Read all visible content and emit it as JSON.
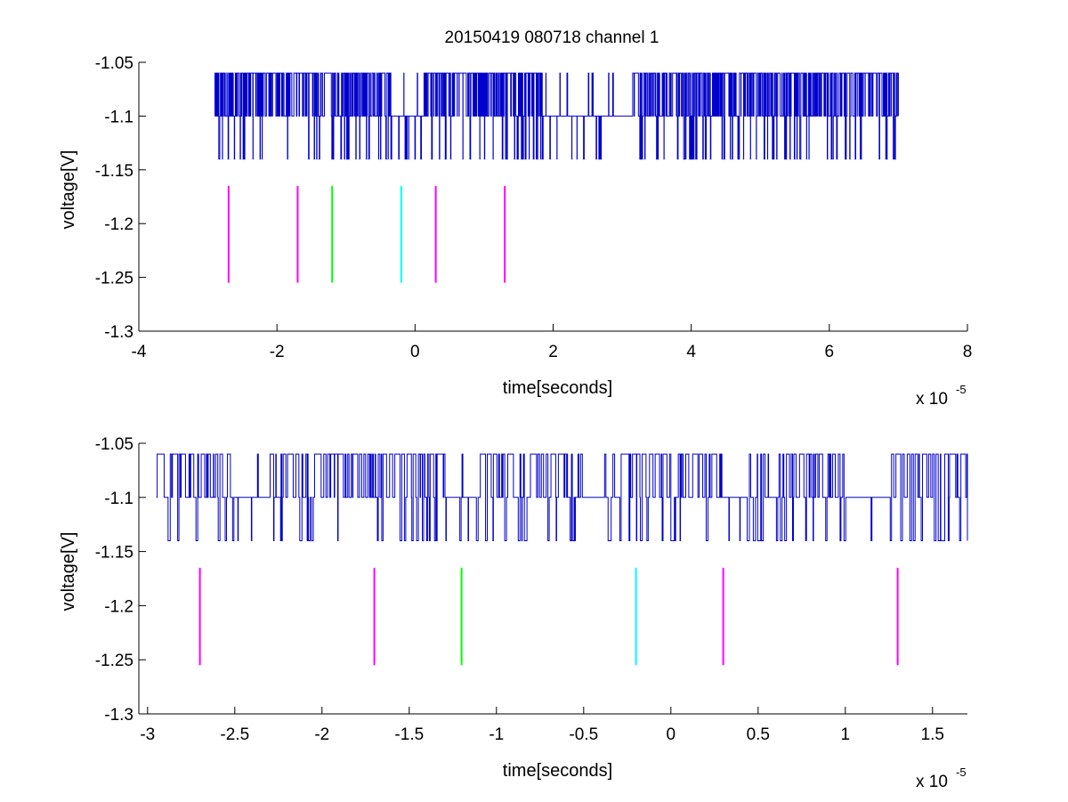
{
  "figure": {
    "title": "20150419 080718 channel 1"
  },
  "chart_data": [
    {
      "type": "line",
      "title": "20150419 080718 channel 1",
      "xlabel": "time[seconds]",
      "ylabel": "voltage[V]",
      "x_multiplier_label": "x 10",
      "x_multiplier_exponent": "-5",
      "xlim": [
        -4e-05,
        8e-05
      ],
      "ylim": [
        -1.3,
        -1.05
      ],
      "x_ticks": [
        -4,
        -2,
        0,
        2,
        4,
        6,
        8
      ],
      "x_tick_labels": [
        "-4",
        "-2",
        "0",
        "2",
        "4",
        "6",
        "8"
      ],
      "y_ticks": [
        -1.3,
        -1.25,
        -1.2,
        -1.15,
        -1.1,
        -1.05
      ],
      "y_tick_labels": [
        "-1.3",
        "-1.25",
        "-1.2",
        "-1.15",
        "-1.1",
        "-1.05"
      ],
      "grid": false,
      "series": [
        {
          "color": "#0000cc",
          "x_range": [
            -2.9e-05,
            7e-05
          ],
          "baseline": -1.1,
          "levels": [
            -1.06,
            -1.1,
            -1.14
          ],
          "note_values": "digitized square-wave trace switching between -1.06, -1.10 and -1.14 V"
        }
      ],
      "markers": [
        {
          "x": -2.7e-05,
          "y": [
            -1.255,
            -1.165
          ],
          "color": "#ff00ff"
        },
        {
          "x": -1.7e-05,
          "y": [
            -1.255,
            -1.165
          ],
          "color": "#ff00ff"
        },
        {
          "x": -1.2e-05,
          "y": [
            -1.255,
            -1.165
          ],
          "color": "#00ff00"
        },
        {
          "x": -2e-06,
          "y": [
            -1.255,
            -1.165
          ],
          "color": "#00ffff"
        },
        {
          "x": 3e-06,
          "y": [
            -1.255,
            -1.165
          ],
          "color": "#ff00ff"
        },
        {
          "x": 1.3e-05,
          "y": [
            -1.255,
            -1.165
          ],
          "color": "#ff00ff"
        }
      ]
    },
    {
      "type": "line",
      "title": "",
      "xlabel": "time[seconds]",
      "ylabel": "voltage[V]",
      "x_multiplier_label": "x 10",
      "x_multiplier_exponent": "-5",
      "xlim": [
        -3.05e-05,
        1.7e-05
      ],
      "ylim": [
        -1.3,
        -1.05
      ],
      "x_ticks": [
        -3,
        -2.5,
        -2,
        -1.5,
        -1,
        -0.5,
        0,
        0.5,
        1,
        1.5
      ],
      "x_tick_labels": [
        "-3",
        "-2.5",
        "-2",
        "-1.5",
        "-1",
        "-0.5",
        "0",
        "0.5",
        "1",
        "1.5"
      ],
      "y_ticks": [
        -1.3,
        -1.25,
        -1.2,
        -1.15,
        -1.1,
        -1.05
      ],
      "y_tick_labels": [
        "-1.3",
        "-1.25",
        "-1.2",
        "-1.15",
        "-1.1",
        "-1.05"
      ],
      "grid": false,
      "series": [
        {
          "color": "#0000cc",
          "x_range": [
            -2.95e-05,
            1.7e-05
          ],
          "baseline": -1.1,
          "levels": [
            -1.06,
            -1.1,
            -1.14
          ]
        }
      ],
      "markers": [
        {
          "x": -2.7e-05,
          "y": [
            -1.255,
            -1.165
          ],
          "color": "#ff00ff"
        },
        {
          "x": -1.7e-05,
          "y": [
            -1.255,
            -1.165
          ],
          "color": "#ff00ff"
        },
        {
          "x": -1.2e-05,
          "y": [
            -1.255,
            -1.165
          ],
          "color": "#00ff00"
        },
        {
          "x": -2e-06,
          "y": [
            -1.255,
            -1.165
          ],
          "color": "#00ffff"
        },
        {
          "x": 3e-06,
          "y": [
            -1.255,
            -1.165
          ],
          "color": "#ff00ff"
        },
        {
          "x": 1.3e-05,
          "y": [
            -1.255,
            -1.165
          ],
          "color": "#ff00ff"
        }
      ]
    }
  ]
}
